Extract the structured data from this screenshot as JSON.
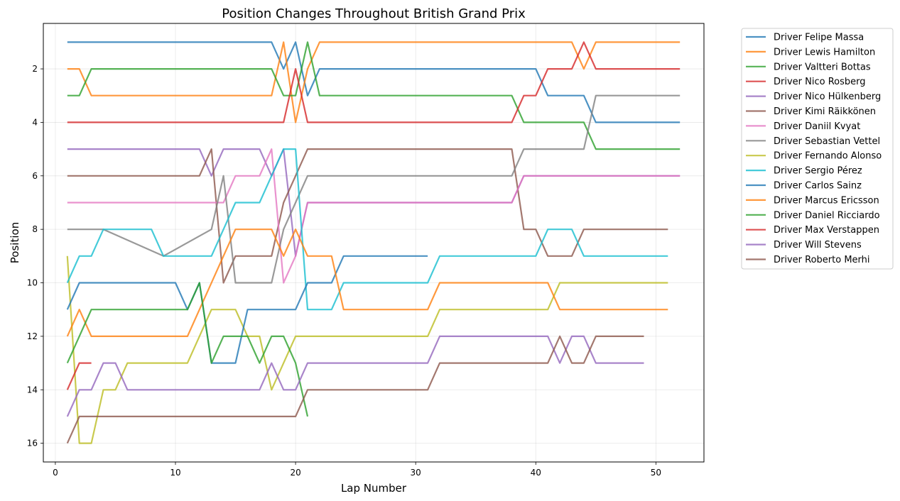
{
  "chart_data": {
    "type": "line",
    "title": "Position Changes Throughout British Grand Prix",
    "xlabel": "Lap Number",
    "ylabel": "Position",
    "xlim": [
      -1,
      54
    ],
    "ylim": [
      16.7,
      0.3
    ],
    "y_inverted": true,
    "grid": true,
    "legend_position": "outside-top-right",
    "xticks": [
      0,
      10,
      20,
      30,
      40,
      50
    ],
    "yticks": [
      2,
      4,
      6,
      8,
      10,
      12,
      14,
      16
    ],
    "series": [
      {
        "name": "Driver Felipe Massa",
        "color": "#1f77b4",
        "x": [
          1,
          18,
          19,
          20,
          21,
          22,
          40,
          41,
          44,
          45,
          52
        ],
        "y": [
          1,
          1,
          2,
          1,
          3,
          2,
          2,
          3,
          3,
          4,
          4
        ]
      },
      {
        "name": "Driver Lewis Hamilton",
        "color": "#ff7f0e",
        "x": [
          1,
          2,
          3,
          18,
          19,
          20,
          21,
          22,
          43,
          44,
          45,
          52
        ],
        "y": [
          2,
          2,
          3,
          3,
          1,
          4,
          2,
          1,
          1,
          2,
          1,
          1
        ]
      },
      {
        "name": "Driver Valtteri Bottas",
        "color": "#2ca02c",
        "x": [
          1,
          2,
          3,
          18,
          19,
          20,
          21,
          22,
          38,
          39,
          44,
          45,
          52
        ],
        "y": [
          3,
          3,
          2,
          2,
          3,
          3,
          1,
          3,
          3,
          4,
          4,
          5,
          5
        ]
      },
      {
        "name": "Driver Nico Rosberg",
        "color": "#d62728",
        "x": [
          1,
          19,
          20,
          21,
          38,
          39,
          40,
          41,
          43,
          44,
          45,
          52
        ],
        "y": [
          4,
          4,
          2,
          4,
          4,
          3,
          3,
          2,
          2,
          1,
          2,
          2
        ]
      },
      {
        "name": "Driver Nico Hülkenberg",
        "color": "#9467bd",
        "x": [
          1,
          12,
          13,
          14,
          17,
          18,
          19,
          20,
          21,
          22,
          23,
          38,
          39,
          52
        ],
        "y": [
          5,
          5,
          6,
          5,
          5,
          6,
          5,
          9,
          7,
          7,
          7,
          7,
          6,
          6
        ]
      },
      {
        "name": "Driver Kimi Räikkönen",
        "color": "#8c564b",
        "x": [
          1,
          12,
          13,
          14,
          15,
          18,
          19,
          20,
          21,
          38,
          39,
          40,
          41,
          43,
          44,
          51
        ],
        "y": [
          6,
          6,
          5,
          10,
          9,
          9,
          7,
          6,
          5,
          5,
          8,
          8,
          9,
          9,
          8,
          8
        ]
      },
      {
        "name": "Driver Daniil Kvyat",
        "color": "#e377c2",
        "x": [
          1,
          14,
          15,
          17,
          18,
          19,
          20,
          21,
          38,
          39,
          52
        ],
        "y": [
          7,
          7,
          6,
          6,
          5,
          10,
          9,
          7,
          7,
          6,
          6
        ]
      },
      {
        "name": "Driver Sebastian Vettel",
        "color": "#7f7f7f",
        "x": [
          1,
          4,
          9,
          13,
          14,
          15,
          18,
          19,
          20,
          21,
          38,
          39,
          44,
          45,
          52
        ],
        "y": [
          8,
          8,
          9,
          8,
          6,
          10,
          10,
          8,
          7,
          6,
          6,
          5,
          5,
          3,
          3
        ]
      },
      {
        "name": "Driver Fernando Alonso",
        "color": "#bcbd22",
        "x": [
          1,
          2,
          3,
          4,
          5,
          6,
          11,
          12,
          13,
          15,
          16,
          17,
          18,
          19,
          20,
          31,
          32,
          41,
          42,
          51
        ],
        "y": [
          9,
          16,
          16,
          14,
          14,
          13,
          13,
          12,
          11,
          11,
          12,
          12,
          14,
          13,
          12,
          12,
          11,
          11,
          10,
          10
        ]
      },
      {
        "name": "Driver Sergio Pérez",
        "color": "#17becf",
        "x": [
          1,
          2,
          3,
          4,
          8,
          9,
          13,
          14,
          15,
          17,
          18,
          19,
          20,
          21,
          23,
          24,
          31,
          32,
          40,
          41,
          43,
          44,
          51
        ],
        "y": [
          10,
          9,
          9,
          8,
          8,
          9,
          9,
          8,
          7,
          7,
          6,
          5,
          5,
          11,
          11,
          10,
          10,
          9,
          9,
          8,
          8,
          9,
          9
        ]
      },
      {
        "name": "Driver Carlos Sainz",
        "color": "#1f77b4",
        "x": [
          1,
          2,
          10,
          11,
          12,
          13,
          15,
          16,
          20,
          21,
          23,
          24,
          31
        ],
        "y": [
          11,
          10,
          10,
          11,
          10,
          13,
          13,
          11,
          11,
          10,
          10,
          9,
          9
        ]
      },
      {
        "name": "Driver Marcus Ericsson",
        "color": "#ff7f0e",
        "x": [
          1,
          2,
          3,
          11,
          12,
          14,
          15,
          18,
          19,
          20,
          21,
          23,
          24,
          31,
          32,
          41,
          42,
          51
        ],
        "y": [
          12,
          11,
          12,
          12,
          11,
          9,
          8,
          8,
          9,
          8,
          9,
          9,
          11,
          11,
          10,
          10,
          11,
          11
        ]
      },
      {
        "name": "Driver Daniel Ricciardo",
        "color": "#2ca02c",
        "x": [
          1,
          3,
          11,
          12,
          13,
          14,
          16,
          17,
          18,
          19,
          20,
          21
        ],
        "y": [
          13,
          11,
          11,
          10,
          13,
          12,
          12,
          13,
          12,
          12,
          13,
          15
        ]
      },
      {
        "name": "Driver Max Verstappen",
        "color": "#d62728",
        "x": [
          1,
          2,
          3
        ],
        "y": [
          14,
          13,
          13
        ]
      },
      {
        "name": "Driver Will Stevens",
        "color": "#9467bd",
        "x": [
          1,
          2,
          3,
          4,
          5,
          6,
          17,
          18,
          19,
          20,
          21,
          31,
          32,
          41,
          42,
          43,
          44,
          45,
          49
        ],
        "y": [
          15,
          14,
          14,
          13,
          13,
          14,
          14,
          13,
          14,
          14,
          13,
          13,
          12,
          12,
          13,
          12,
          12,
          13,
          13
        ]
      },
      {
        "name": "Driver Roberto Merhi",
        "color": "#8c564b",
        "x": [
          1,
          2,
          20,
          21,
          31,
          32,
          41,
          42,
          43,
          44,
          45,
          49
        ],
        "y": [
          16,
          15,
          15,
          14,
          14,
          13,
          13,
          12,
          13,
          13,
          12,
          12
        ]
      }
    ]
  }
}
